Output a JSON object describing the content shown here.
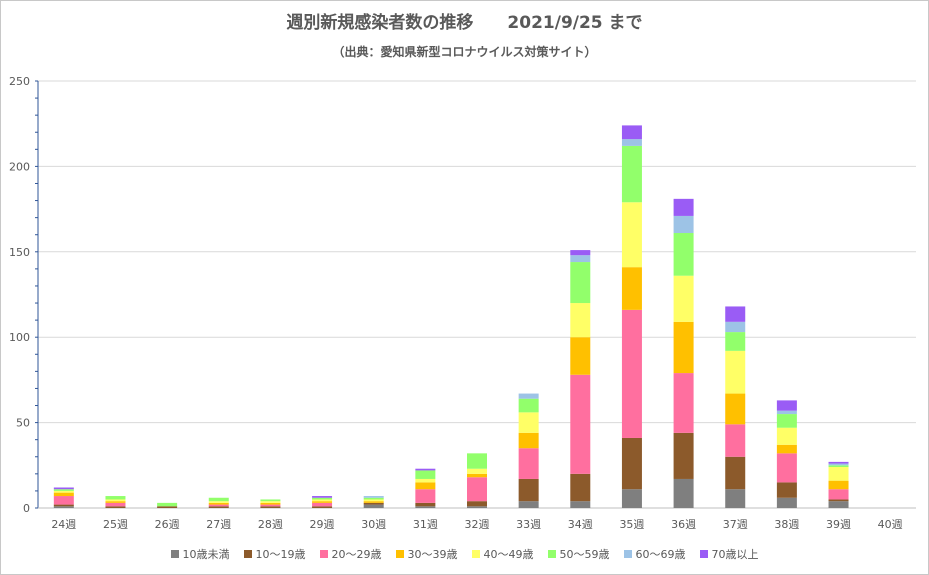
{
  "chart_data": {
    "type": "bar",
    "stacked": true,
    "title": "週別新規感染者数の推移　　2021/9/25 まで",
    "subtitle": "（出典：愛知県新型コロナウイルス対策サイト）",
    "xlabel": "",
    "ylabel": "",
    "ylim": [
      0,
      250
    ],
    "yticks": [
      0,
      50,
      100,
      150,
      200,
      250
    ],
    "grid": true,
    "legend_position": "bottom",
    "categories": [
      "24週",
      "25週",
      "26週",
      "27週",
      "28週",
      "29週",
      "30週",
      "31週",
      "32週",
      "33週",
      "34週",
      "35週",
      "36週",
      "37週",
      "38週",
      "39週",
      "40週"
    ],
    "series": [
      {
        "name": "10歳未満",
        "color": "#7f7f7f",
        "values": [
          1,
          0,
          0,
          0,
          0,
          0,
          2,
          1,
          1,
          4,
          4,
          11,
          17,
          11,
          6,
          4,
          0
        ]
      },
      {
        "name": "10～19歳",
        "color": "#8c5a2b",
        "values": [
          1,
          1,
          1,
          1,
          1,
          1,
          1,
          2,
          3,
          13,
          16,
          30,
          27,
          19,
          9,
          1,
          0
        ]
      },
      {
        "name": "20～29歳",
        "color": "#ff6f9f",
        "values": [
          5,
          2,
          0,
          1,
          1,
          2,
          0,
          8,
          14,
          18,
          58,
          75,
          35,
          19,
          17,
          6,
          0
        ]
      },
      {
        "name": "30～39歳",
        "color": "#ffc000",
        "values": [
          2,
          1,
          0,
          1,
          1,
          1,
          1,
          4,
          2,
          9,
          22,
          25,
          30,
          18,
          5,
          5,
          0
        ]
      },
      {
        "name": "40～49歳",
        "color": "#ffff66",
        "values": [
          1,
          1,
          0,
          1,
          1,
          1,
          1,
          2,
          3,
          12,
          20,
          38,
          27,
          25,
          10,
          8,
          0
        ]
      },
      {
        "name": "50～59歳",
        "color": "#92ff6b",
        "values": [
          1,
          2,
          2,
          2,
          1,
          1,
          1,
          5,
          9,
          8,
          24,
          33,
          25,
          11,
          8,
          1,
          0
        ]
      },
      {
        "name": "60～69歳",
        "color": "#9dc3e6",
        "values": [
          0,
          0,
          0,
          0,
          0,
          0,
          1,
          0,
          0,
          3,
          4,
          4,
          10,
          6,
          2,
          1,
          0
        ]
      },
      {
        "name": "70歳以上",
        "color": "#9a5cf5",
        "values": [
          1,
          0,
          0,
          0,
          0,
          1,
          0,
          1,
          0,
          0,
          3,
          8,
          10,
          9,
          6,
          1,
          0
        ]
      }
    ]
  }
}
